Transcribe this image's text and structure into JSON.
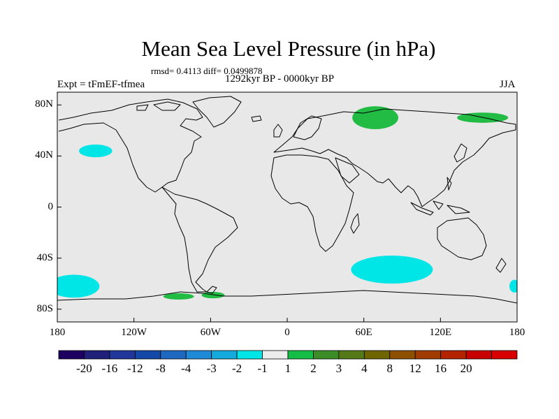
{
  "title": "Mean Sea Level Pressure (in hPa)",
  "stats": "rmsd= 0.4113 diff= 0.0499878",
  "period": "1292kyr BP - 0000kyr BP",
  "experiment": "Expt = tFmEF-tfmea",
  "season": "JJA",
  "map": {
    "lon_range": [
      -180,
      180
    ],
    "lat_range": [
      -90,
      90
    ],
    "background_color": "#e8e8e8",
    "y_ticks": [
      {
        "lat": 80,
        "label": "80N"
      },
      {
        "lat": 40,
        "label": "40N"
      },
      {
        "lat": 0,
        "label": "0"
      },
      {
        "lat": -40,
        "label": "40S"
      },
      {
        "lat": -80,
        "label": "80S"
      }
    ],
    "x_ticks": [
      {
        "lon": -180,
        "label": "180"
      },
      {
        "lon": -120,
        "label": "120W"
      },
      {
        "lon": -60,
        "label": "60W"
      },
      {
        "lon": 0,
        "label": "0"
      },
      {
        "lon": 60,
        "label": "60E"
      },
      {
        "lon": 120,
        "label": "120E"
      },
      {
        "lon": 180,
        "label": "180"
      }
    ],
    "anomaly_regions": [
      {
        "name": "north-pacific-negative",
        "lon": -150,
        "lat": 44,
        "rlon": 13,
        "rlat": 5,
        "bin": "-2 to -1"
      },
      {
        "name": "south-pacific-negative",
        "lon": -167,
        "lat": -62,
        "rlon": 20,
        "rlat": 9,
        "bin": "-2 to -1"
      },
      {
        "name": "south-indian-negative",
        "lon": 82,
        "lat": -49,
        "rlon": 32,
        "rlat": 11,
        "bin": "-2 to -1"
      },
      {
        "name": "dateline-south-negative",
        "lon": 178,
        "lat": -62,
        "rlon": 4,
        "rlat": 5,
        "bin": "-2 to -1"
      },
      {
        "name": "siberia-positive",
        "lon": 69,
        "lat": 70,
        "rlon": 18,
        "rlat": 9,
        "bin": "1 to 2"
      },
      {
        "name": "east-siberia-positive",
        "lon": 153,
        "lat": 70,
        "rlon": 20,
        "rlat": 4,
        "bin": "1 to 2"
      },
      {
        "name": "southern-ocean-positive",
        "lon": -85,
        "lat": -70,
        "rlon": 12,
        "rlat": 2.5,
        "bin": "1 to 2"
      },
      {
        "name": "drake-positive",
        "lon": -58,
        "lat": -69,
        "rlon": 9,
        "rlat": 2.5,
        "bin": "1 to 2"
      }
    ]
  },
  "colorbar": {
    "colors": [
      "#1e0060",
      "#20207a",
      "#20369a",
      "#1448a8",
      "#1e68c0",
      "#1e8ad8",
      "#14aadc",
      "#00e6e6",
      "#ececec",
      "#14be46",
      "#3c8c28",
      "#557818",
      "#6e6400",
      "#8c5000",
      "#a03c00",
      "#b42300",
      "#c80000",
      "#d80000"
    ],
    "labels": [
      "-20",
      "-16",
      "-12",
      "-8",
      "-4",
      "-3",
      "-2",
      "-1",
      "1",
      "2",
      "3",
      "4",
      "8",
      "12",
      "16",
      "20"
    ],
    "fill_negative": "#00e6e6",
    "fill_positive": "#22bb44"
  }
}
